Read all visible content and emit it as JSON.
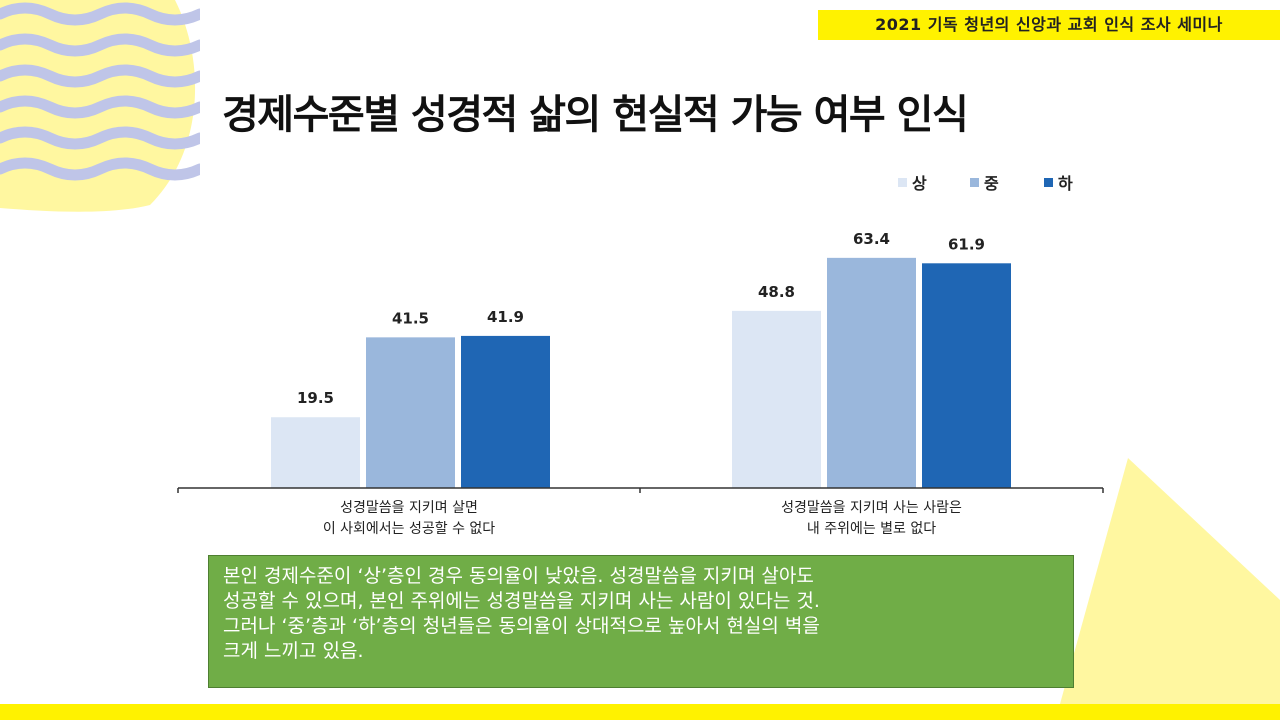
{
  "header": {
    "seminar_title": "2021 기독 청년의 신앙과 교회 인식 조사 세미나"
  },
  "slide": {
    "title": "경제수준별 성경적 삶의 현실적 가능 여부 인식"
  },
  "chart_data": {
    "type": "bar",
    "title": "경제수준별 성경적 삶의 현실적 가능 여부 인식",
    "categories": [
      [
        "성경말씀을 지키며 살면",
        "이 사회에서는 성공할 수 없다"
      ],
      [
        "성경말씀을 지키며 사는 사람은",
        "내 주위에는 별로 없다"
      ]
    ],
    "series": [
      {
        "name": "상",
        "values": [
          19.5,
          48.8
        ],
        "labels": [
          "19.5",
          "48.8"
        ],
        "color": "#dce6f4"
      },
      {
        "name": "중",
        "values": [
          41.5,
          63.4
        ],
        "labels": [
          "41.5",
          "63.4"
        ],
        "color": "#9ab7dc"
      },
      {
        "name": "하",
        "values": [
          41.9,
          61.9
        ],
        "labels": [
          "41.9",
          "61.9"
        ],
        "color": "#1f66b4"
      }
    ],
    "ylim": [
      0,
      100
    ],
    "grid": false,
    "legend_position": "top-right",
    "xlabel": "",
    "ylabel": ""
  },
  "summary": {
    "lines": [
      "본인 경제수준이 ‘상’층인 경우 동의율이 낮았음. 성경말씀을 지키며 살아도",
      "성공할 수 있으며, 본인 주위에는 성경말씀을 지키며 사는 사람이 있다는 것.",
      "그러나 ‘중’층과 ‘하’층의 청년들은 동의율이 상대적으로 높아서 현실의 벽을",
      "크게 느끼고 있음."
    ]
  },
  "colors": {
    "banner_yellow": "#fff200",
    "wave_blue": "#bfc5e8",
    "wave_yellow": "#fff7a0",
    "summary_green": "#70ad47"
  }
}
